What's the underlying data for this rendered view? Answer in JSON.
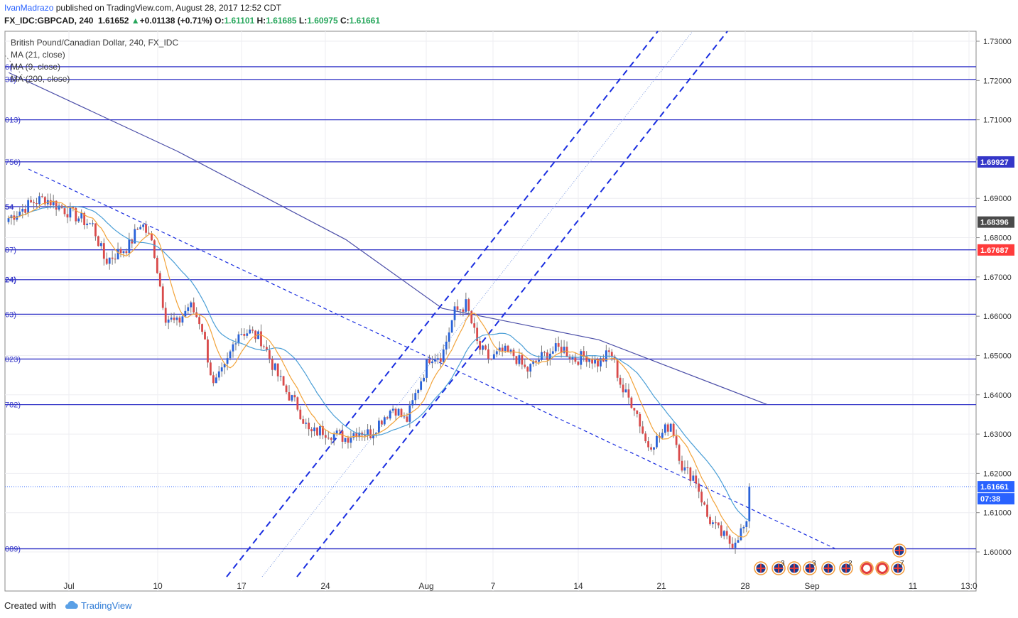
{
  "header": {
    "author": "IvanMadrazo",
    "published_text": "published on TradingView.com, August 28, 2017 12:52 CDT",
    "symbol": "FX_IDC:GBPCAD, 240",
    "last": "1.61652",
    "change": "+0.01138 (+0.71%)",
    "open_label": "O:",
    "open": "1.61101",
    "high_label": "H:",
    "high": "1.61685",
    "low_label": "L:",
    "low": "1.60975",
    "close_label": "C:",
    "close": "1.61661"
  },
  "legend": {
    "title": "British Pound/Canadian Dollar, 240, FX_IDC",
    "ma1": "MA (21, close)",
    "ma2": "MA (9, close)",
    "ma3": "MA (200, close)"
  },
  "level_labels_left": [
    "6(",
    "38)",
    "013)",
    "756)",
    "54",
    "87)",
    "24)",
    "63)",
    "023)",
    "782)",
    "089)"
  ],
  "price_badges": {
    "fib_level": "1.69927",
    "current_mark": "1.68396",
    "red_level": "1.67687",
    "last_price": "1.61661",
    "countdown": "07:38"
  },
  "footer": {
    "created_with": "Created with",
    "brand": "TradingView"
  },
  "colors": {
    "up": "#2962d9",
    "down": "#d94a4a",
    "level": "#3436c8",
    "channel": "#1a2ee0",
    "ma21": "#4a9ed6",
    "ma9": "#f2a33a",
    "ma200": "#4b4ea8",
    "last": "#2962ff",
    "red_badge": "#ff3b3b"
  },
  "chart_data": {
    "type": "candlestick",
    "symbol": "GBPCAD",
    "timeframe": "240",
    "ylim": [
      1.594,
      1.734
    ],
    "y_ticks": [
      "1.73000",
      "1.72000",
      "1.71000",
      "1.70000",
      "1.69000",
      "1.68000",
      "1.67000",
      "1.66000",
      "1.65000",
      "1.64000",
      "1.63000",
      "1.62000",
      "1.61000",
      "1.60000"
    ],
    "x_ticks": [
      "Jul",
      "10",
      "17",
      "24",
      "Aug",
      "7",
      "14",
      "21",
      "28",
      "Sep",
      "11",
      "13:0"
    ],
    "horizontal_levels": [
      1.7235,
      1.7203,
      1.71,
      1.6993,
      1.6879,
      1.6769,
      1.6693,
      1.6605,
      1.6491,
      1.6375,
      1.6008
    ],
    "close_path": [
      {
        "x": "Jun 26",
        "y": 1.685
      },
      {
        "x": "Jun 28",
        "y": 1.689
      },
      {
        "x": "Jun 29",
        "y": 1.69
      },
      {
        "x": "Jul 3",
        "y": 1.683
      },
      {
        "x": "Jul 4",
        "y": 1.674
      },
      {
        "x": "Jul 6",
        "y": 1.678
      },
      {
        "x": "Jul 7",
        "y": 1.684
      },
      {
        "x": "Jul 8",
        "y": 1.678
      },
      {
        "x": "Jul 9",
        "y": 1.66
      },
      {
        "x": "Jul 10",
        "y": 1.658
      },
      {
        "x": "Jul 11",
        "y": 1.663
      },
      {
        "x": "Jul 12",
        "y": 1.658
      },
      {
        "x": "Jul 13",
        "y": 1.642
      },
      {
        "x": "Jul 14",
        "y": 1.647
      },
      {
        "x": "Jul 15",
        "y": 1.656
      },
      {
        "x": "Jul 16",
        "y": 1.656
      },
      {
        "x": "Jul 17",
        "y": 1.654
      },
      {
        "x": "Jul 18",
        "y": 1.647
      },
      {
        "x": "Jul 19",
        "y": 1.641
      },
      {
        "x": "Jul 20",
        "y": 1.637
      },
      {
        "x": "Jul 21",
        "y": 1.63
      },
      {
        "x": "Jul 22",
        "y": 1.631
      },
      {
        "x": "Jul 24",
        "y": 1.629
      },
      {
        "x": "Jul 25",
        "y": 1.631
      },
      {
        "x": "Jul 26",
        "y": 1.63
      },
      {
        "x": "Jul 27",
        "y": 1.634
      },
      {
        "x": "Jul 28",
        "y": 1.637
      },
      {
        "x": "Jul 29",
        "y": 1.633
      },
      {
        "x": "Jul 30",
        "y": 1.642
      },
      {
        "x": "Jul 31",
        "y": 1.65
      },
      {
        "x": "Aug 1",
        "y": 1.65
      },
      {
        "x": "Aug 2",
        "y": 1.661
      },
      {
        "x": "Aug 3",
        "y": 1.663
      },
      {
        "x": "Aug 4",
        "y": 1.652
      },
      {
        "x": "Aug 5",
        "y": 1.649
      },
      {
        "x": "Aug 6",
        "y": 1.651
      },
      {
        "x": "Aug 7",
        "y": 1.65
      },
      {
        "x": "Aug 8",
        "y": 1.646
      },
      {
        "x": "Aug 9",
        "y": 1.649
      },
      {
        "x": "Aug 10",
        "y": 1.651
      },
      {
        "x": "Aug 11",
        "y": 1.652
      },
      {
        "x": "Aug 12",
        "y": 1.649
      },
      {
        "x": "Aug 13",
        "y": 1.65
      },
      {
        "x": "Aug 14",
        "y": 1.648
      },
      {
        "x": "Aug 15",
        "y": 1.651
      },
      {
        "x": "Aug 16",
        "y": 1.641
      },
      {
        "x": "Aug 17",
        "y": 1.637
      },
      {
        "x": "Aug 18",
        "y": 1.627
      },
      {
        "x": "Aug 19",
        "y": 1.629
      },
      {
        "x": "Aug 20",
        "y": 1.633
      },
      {
        "x": "Aug 21",
        "y": 1.621
      },
      {
        "x": "Aug 22",
        "y": 1.619
      },
      {
        "x": "Aug 23",
        "y": 1.609
      },
      {
        "x": "Aug 24",
        "y": 1.605
      },
      {
        "x": "Aug 25",
        "y": 1.602
      },
      {
        "x": "Aug 26",
        "y": 1.606
      },
      {
        "x": "Aug 27",
        "y": 1.6066
      },
      {
        "x": "Aug 28",
        "y": 1.6166
      }
    ],
    "ma200_path": [
      {
        "x": "Jun 26",
        "y": 1.722
      },
      {
        "x": "Jul 10",
        "y": 1.702
      },
      {
        "x": "Jul 24",
        "y": 1.6795
      },
      {
        "x": "Aug 1",
        "y": 1.662
      },
      {
        "x": "Aug 14",
        "y": 1.654
      },
      {
        "x": "Aug 28",
        "y": 1.6375
      }
    ],
    "last_price": 1.61661
  }
}
